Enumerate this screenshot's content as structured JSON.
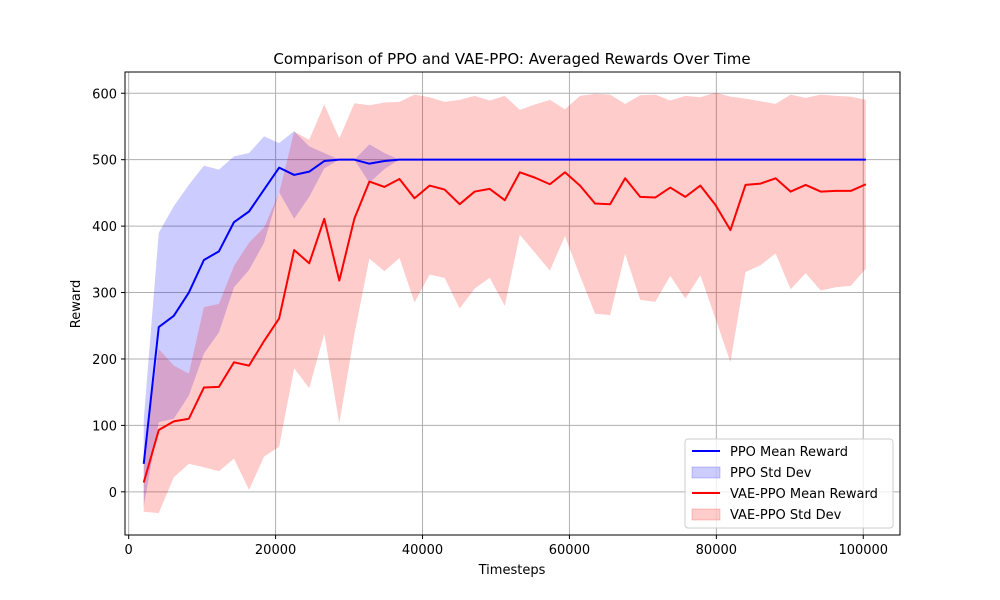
{
  "chart_data": {
    "type": "line",
    "title": "Comparison of PPO and VAE-PPO: Averaged Rewards Over Time",
    "xlabel": "Timesteps",
    "ylabel": "Reward",
    "xlim": [
      -500,
      105000
    ],
    "ylim": [
      -65,
      632
    ],
    "xticks": [
      0,
      20000,
      40000,
      60000,
      80000,
      100000
    ],
    "xtick_labels": [
      "0",
      "20000",
      "40000",
      "60000",
      "80000",
      "100000"
    ],
    "yticks": [
      0,
      100,
      200,
      300,
      400,
      500,
      600
    ],
    "ytick_labels": [
      "0",
      "100",
      "200",
      "300",
      "400",
      "500",
      "600"
    ],
    "grid": true,
    "legend_placement": "lower-right",
    "legend": [
      {
        "label": "PPO Mean Reward",
        "kind": "line",
        "color": "#0000ff"
      },
      {
        "label": "PPO Std Dev",
        "kind": "band",
        "color": "#0000ff"
      },
      {
        "label": "VAE-PPO Mean Reward",
        "kind": "line",
        "color": "#ff0000"
      },
      {
        "label": "VAE-PPO Std Dev",
        "kind": "band",
        "color": "#ff0000"
      }
    ],
    "series": [
      {
        "name": "PPO Mean Reward",
        "band_name": "PPO Std Dev",
        "color": "#0000ff",
        "band_color": "#0000ff",
        "band_opacity": 0.2,
        "x": [
          2048,
          4096,
          6144,
          8192,
          10240,
          12288,
          14336,
          16384,
          18432,
          20480,
          22528,
          24576,
          26624,
          28672,
          30720,
          32768,
          34816,
          36864,
          38912,
          40960,
          43008,
          45056,
          47104,
          49152,
          51200,
          53248,
          55296,
          57344,
          59392,
          61440,
          63488,
          65536,
          67584,
          69632,
          71680,
          73728,
          75776,
          77824,
          79872,
          81920,
          83968,
          86016,
          88064,
          90112,
          92160,
          94208,
          96256,
          98304,
          100352
        ],
        "mean": [
          42,
          248,
          265,
          300,
          349,
          362,
          406,
          422,
          455,
          488,
          477,
          482,
          498,
          500,
          500,
          494,
          498,
          500,
          500,
          500,
          500,
          500,
          500,
          500,
          500,
          500,
          500,
          500,
          500,
          500,
          500,
          500,
          500,
          500,
          500,
          500,
          500,
          500,
          500,
          500,
          500,
          500,
          500,
          500,
          500,
          500,
          500,
          500,
          500
        ],
        "upper": [
          108,
          390,
          430,
          462,
          491,
          485,
          505,
          510,
          535,
          525,
          543,
          520,
          510,
          500,
          500,
          523,
          510,
          500,
          500,
          500,
          500,
          500,
          500,
          500,
          500,
          500,
          500,
          500,
          500,
          500,
          500,
          500,
          500,
          500,
          500,
          500,
          500,
          500,
          500,
          500,
          500,
          500,
          500,
          500,
          500,
          500,
          500,
          500,
          500
        ],
        "lower": [
          -22,
          105,
          110,
          145,
          208,
          240,
          308,
          334,
          375,
          451,
          411,
          444,
          487,
          500,
          500,
          465,
          486,
          500,
          500,
          500,
          500,
          500,
          500,
          500,
          500,
          500,
          500,
          500,
          500,
          500,
          500,
          500,
          500,
          500,
          500,
          500,
          500,
          500,
          500,
          500,
          500,
          500,
          500,
          500,
          500,
          500,
          500,
          500,
          500
        ]
      },
      {
        "name": "VAE-PPO Mean Reward",
        "band_name": "VAE-PPO Std Dev",
        "color": "#ff0000",
        "band_color": "#ff0000",
        "band_opacity": 0.2,
        "x": [
          2048,
          4096,
          6144,
          8192,
          10240,
          12288,
          14336,
          16384,
          18432,
          20480,
          22528,
          24576,
          26624,
          28672,
          30720,
          32768,
          34816,
          36864,
          38912,
          40960,
          43008,
          45056,
          47104,
          49152,
          51200,
          53248,
          55296,
          57344,
          59392,
          61440,
          63488,
          65536,
          67584,
          69632,
          71680,
          73728,
          75776,
          77824,
          79872,
          81920,
          83968,
          86016,
          88064,
          90112,
          92160,
          94208,
          96256,
          98304,
          100352
        ],
        "mean": [
          14,
          93,
          106,
          110,
          157,
          158,
          195,
          190,
          227,
          261,
          364,
          344,
          411,
          318,
          411,
          467,
          459,
          471,
          442,
          461,
          455,
          433,
          452,
          456,
          439,
          481,
          473,
          463,
          481,
          461,
          434,
          433,
          472,
          444,
          443,
          458,
          444,
          461,
          432,
          394,
          462,
          464,
          472,
          452,
          462,
          452,
          453,
          453,
          463
        ],
        "upper": [
          58,
          215,
          190,
          178,
          278,
          283,
          340,
          375,
          398,
          450,
          542,
          530,
          583,
          532,
          585,
          582,
          586,
          587,
          598,
          594,
          587,
          590,
          596,
          589,
          596,
          575,
          583,
          590,
          576,
          596,
          599,
          598,
          584,
          597,
          598,
          589,
          596,
          594,
          601,
          595,
          592,
          588,
          584,
          598,
          593,
          598,
          596,
          595,
          590
        ],
        "lower": [
          -30,
          -32,
          22,
          42,
          37,
          31,
          50,
          3,
          53,
          68,
          186,
          156,
          238,
          103,
          237,
          351,
          332,
          352,
          285,
          327,
          322,
          276,
          306,
          322,
          280,
          387,
          360,
          333,
          385,
          325,
          268,
          266,
          358,
          289,
          286,
          325,
          291,
          326,
          261,
          195,
          331,
          341,
          359,
          305,
          329,
          303,
          308,
          310,
          336
        ]
      }
    ]
  }
}
